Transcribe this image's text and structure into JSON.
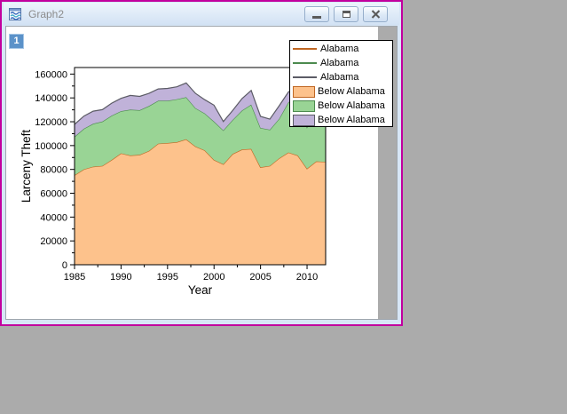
{
  "window": {
    "title": "Graph2",
    "layer_badge": "1",
    "buttons": [
      "minimize-icon",
      "restore-icon",
      "close-icon"
    ]
  },
  "ui_colors": {
    "desktop": "#ABABAB",
    "active_window_border": "#C2009E",
    "titlebar": "#DCE9F7",
    "page": "#FFFFFF",
    "outside_page": "#ABABAB",
    "layer_badge_blue": "#5B92C9"
  },
  "legend": {
    "entries": [
      {
        "type": "line",
        "label": "Alabama",
        "color": "#C06622"
      },
      {
        "type": "line",
        "label": "Alabama",
        "color": "#4C8A4E"
      },
      {
        "type": "line",
        "label": "Alabama",
        "color": "#5C5C66"
      },
      {
        "type": "box",
        "label": "Below Alabama",
        "fill": "#FDC28C",
        "border": "#C06622"
      },
      {
        "type": "box",
        "label": "Below Alabama",
        "fill": "#99D495",
        "border": "#4C8A4E"
      },
      {
        "type": "box",
        "label": "Below Alabama",
        "fill": "#C0B2D9",
        "border": "#5C5C66"
      }
    ]
  },
  "chart_data": {
    "type": "area",
    "stacked": true,
    "title": "",
    "xlabel": "Year",
    "ylabel": "Larceny Theft",
    "xlim": [
      1985,
      2012
    ],
    "ylim": [
      0,
      165500
    ],
    "x_ticks": [
      1985,
      1990,
      1995,
      2000,
      2005,
      2010
    ],
    "x_minor_ticks": [
      1987.5,
      1992.5,
      1997.5,
      2002.5,
      2007.5
    ],
    "y_ticks": [
      0,
      20000,
      40000,
      60000,
      80000,
      100000,
      120000,
      140000,
      160000
    ],
    "y_minor_ticks": [
      10000,
      30000,
      50000,
      70000,
      90000,
      110000,
      130000,
      150000
    ],
    "grid": false,
    "legend_position": "top-right",
    "stack_note": "cumulative_top arrays are the drawn stack-top values; band value = cumulative_top minus previous series cumulative_top",
    "x": [
      1985,
      1986,
      1987,
      1988,
      1989,
      1990,
      1991,
      1992,
      1993,
      1994,
      1995,
      1996,
      1997,
      1998,
      1999,
      2000,
      2001,
      2002,
      2003,
      2004,
      2005,
      2006,
      2007,
      2008,
      2009,
      2010,
      2011,
      2012
    ],
    "series": [
      {
        "id": "below-alabama-1",
        "name": "Below Alabama",
        "fill": "#FDC28C",
        "line": "#C06622",
        "cumulative_top": [
          75100,
          80100,
          82300,
          83000,
          88000,
          93500,
          91700,
          92200,
          95500,
          101600,
          102100,
          102900,
          105300,
          99200,
          96000,
          88000,
          84300,
          93000,
          96700,
          97200,
          81800,
          83000,
          89300,
          94200,
          91700,
          80600,
          86800,
          86300
        ]
      },
      {
        "id": "below-alabama-2",
        "name": "Below Alabama",
        "fill": "#99D495",
        "line": "#4C8A4E",
        "cumulative_top": [
          107400,
          114100,
          118300,
          120200,
          125200,
          128900,
          130200,
          129700,
          133200,
          137600,
          137600,
          138900,
          140600,
          131400,
          127000,
          120200,
          112800,
          121500,
          129400,
          134400,
          114800,
          113300,
          122500,
          136400,
          140000,
          115300,
          128000,
          131000
        ]
      },
      {
        "id": "below-alabama-3",
        "name": "Below Alabama",
        "fill": "#C0B2D9",
        "line": "#5C5C66",
        "cumulative_top": [
          117800,
          124700,
          128900,
          130200,
          135600,
          139600,
          142100,
          141300,
          143800,
          147500,
          148000,
          149300,
          152500,
          143800,
          138500,
          133900,
          120200,
          129400,
          139400,
          146300,
          124500,
          122200,
          133400,
          145100,
          149500,
          124000,
          139000,
          142000
        ]
      }
    ]
  }
}
